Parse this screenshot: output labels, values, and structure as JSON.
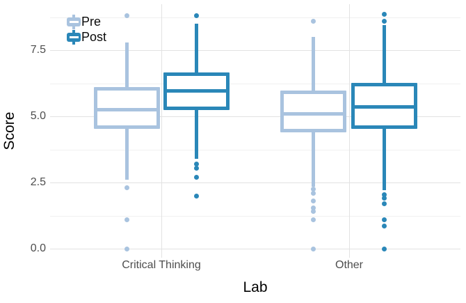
{
  "figure": {
    "background": "#ffffff"
  },
  "chart_data": {
    "type": "boxplot",
    "title": "",
    "xlabel": "Lab",
    "ylabel": "Score",
    "categories": [
      "Critical Thinking",
      "Other"
    ],
    "y_ticks": [
      "0.0",
      "2.5",
      "5.0",
      "7.5"
    ],
    "y_tick_values": [
      0,
      2.5,
      5,
      7.5
    ],
    "y_minor_values": [
      1.25,
      3.75,
      6.25,
      8.75
    ],
    "ylim": [
      -0.2,
      9.25
    ],
    "grid": {
      "major": true,
      "minor": true
    },
    "legend": {
      "position": "top-left-inside",
      "items": [
        {
          "label": "Pre",
          "color": "#a9c3df"
        },
        {
          "label": "Post",
          "color": "#2a87b8"
        }
      ]
    },
    "series": [
      {
        "name": "Pre",
        "color": "#a9c3df",
        "boxes": [
          {
            "category": "Critical Thinking",
            "q1": 4.6,
            "median": 5.25,
            "q3": 6.05,
            "whisker_low": 2.6,
            "whisker_high": 7.8,
            "outliers": [
              8.8,
              2.3,
              1.1,
              0.0
            ]
          },
          {
            "category": "Other",
            "q1": 4.45,
            "median": 5.1,
            "q3": 5.9,
            "whisker_low": 2.35,
            "whisker_high": 8.0,
            "outliers": [
              8.6,
              2.25,
              2.1,
              1.8,
              1.55,
              1.4,
              1.1,
              0.0
            ]
          }
        ]
      },
      {
        "name": "Post",
        "color": "#2a87b8",
        "boxes": [
          {
            "category": "Critical Thinking",
            "q1": 5.3,
            "median": 5.95,
            "q3": 6.6,
            "whisker_low": 3.4,
            "whisker_high": 8.5,
            "outliers": [
              8.8,
              3.2,
              3.05,
              2.7,
              2.0
            ]
          },
          {
            "category": "Other",
            "q1": 4.6,
            "median": 5.35,
            "q3": 6.2,
            "whisker_low": 2.2,
            "whisker_high": 8.45,
            "outliers": [
              8.85,
              8.6,
              2.05,
              1.9,
              1.7,
              1.1,
              0.85,
              0.0
            ]
          }
        ]
      }
    ]
  }
}
